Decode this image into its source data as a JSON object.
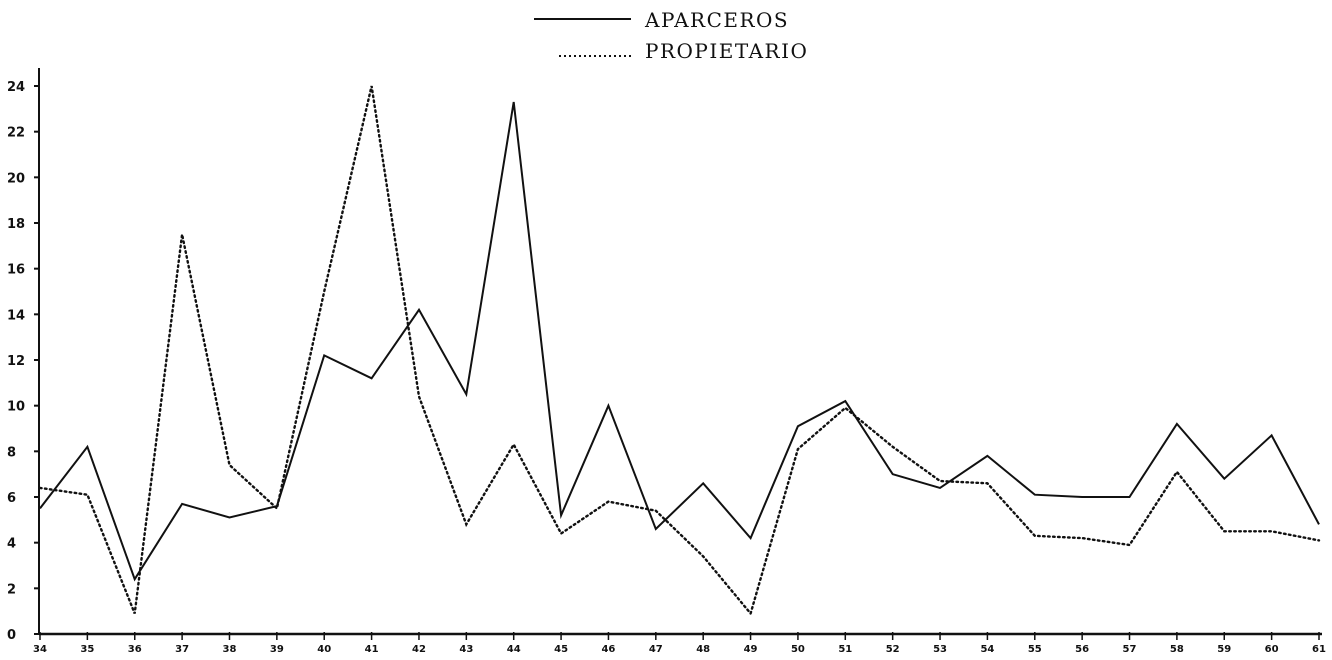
{
  "chart_data": {
    "type": "line",
    "title": "",
    "xlabel": "",
    "ylabel": "",
    "ylim": [
      0,
      24
    ],
    "yticks": [
      0,
      2,
      4,
      6,
      8,
      10,
      12,
      14,
      16,
      18,
      20,
      22,
      24
    ],
    "x": [
      "34",
      "35",
      "36",
      "37",
      "38",
      "39",
      "40",
      "41",
      "42",
      "43",
      "44",
      "45",
      "46",
      "47",
      "48",
      "49",
      "50",
      "51",
      "52",
      "53",
      "54",
      "55",
      "56",
      "57",
      "58",
      "59",
      "60",
      "61"
    ],
    "grid": false,
    "legend_position": "top-center",
    "series": [
      {
        "name": "APARCEROS",
        "style": "solid",
        "color": "#111111",
        "values": [
          5.5,
          8.2,
          2.4,
          5.7,
          5.1,
          5.6,
          12.2,
          11.2,
          14.2,
          10.5,
          23.3,
          5.2,
          10.0,
          4.6,
          6.6,
          4.2,
          9.1,
          10.2,
          7.0,
          6.4,
          7.8,
          6.1,
          6.0,
          6.0,
          9.2,
          6.8,
          8.7,
          4.8
        ]
      },
      {
        "name": "PROPIETARIO",
        "style": "dotted",
        "color": "#111111",
        "values": [
          6.4,
          6.1,
          0.9,
          17.5,
          7.4,
          5.5,
          15.0,
          24.0,
          10.4,
          4.8,
          8.3,
          4.4,
          5.8,
          5.4,
          3.4,
          0.9,
          8.1,
          9.9,
          8.2,
          6.7,
          6.6,
          4.3,
          4.2,
          3.9,
          7.1,
          4.5,
          4.5,
          4.1
        ]
      }
    ]
  }
}
